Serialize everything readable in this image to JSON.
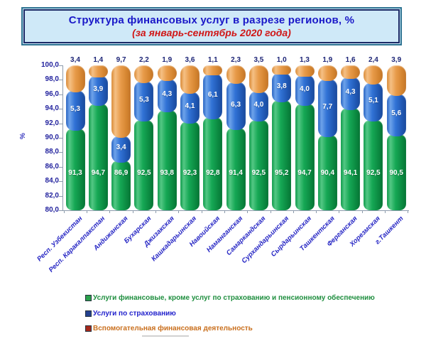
{
  "title_box": {
    "title": "Структура финансовых услуг в разрезе регионов, %",
    "subtitle": "(за январь-сентябрь 2020 года)"
  },
  "chart_data": {
    "type": "bar",
    "stacked": true,
    "grid": false,
    "ylabel": "%",
    "ylim": [
      80.0,
      100.0
    ],
    "y_tick_step": 2.0,
    "y_tick_labels": [
      "80,0",
      "82,0",
      "84,0",
      "86,0",
      "88,0",
      "90,0",
      "92,0",
      "94,0",
      "96,0",
      "98,0",
      "100,0"
    ],
    "decimal_separator": ",",
    "legend_position": "bottom-left",
    "categories": [
      "Респ. Узбекистан",
      "Респ. Каракалпакстан",
      "Андижанская",
      "Бухарская",
      "Джизакская",
      "Кашкадарьинская",
      "Навоийская",
      "Наманганская",
      "Самаркандская",
      "Сурхандарьинская",
      "Сырдарьинская",
      "Ташкентская",
      "Ферганская",
      "Хорезмская",
      "г.Ташкент"
    ],
    "series": [
      {
        "name": "Услуги финансовые, кроме услуг по страхованию и пенсионному обеспечению",
        "color": "#12A04C",
        "values": [
          91.3,
          94.7,
          86.9,
          92.5,
          93.8,
          92.3,
          92.8,
          91.4,
          92.5,
          95.2,
          94.7,
          90.4,
          94.1,
          92.5,
          90.5
        ]
      },
      {
        "name": "Услуги по страхованию",
        "color": "#2B6FD4",
        "values": [
          5.3,
          3.9,
          3.4,
          5.3,
          4.3,
          4.1,
          6.1,
          6.3,
          4.0,
          3.8,
          4.0,
          7.7,
          4.3,
          5.1,
          5.6
        ]
      },
      {
        "name": "Вспомогательная финансовая деятельность",
        "color": "#E3953F",
        "values": [
          3.4,
          1.4,
          9.7,
          2.2,
          1.9,
          3.6,
          1.1,
          2.3,
          3.5,
          1.0,
          1.3,
          1.9,
          1.6,
          2.4,
          3.9
        ]
      }
    ]
  },
  "legend": {
    "items": [
      {
        "label": "Услуги финансовые, кроме услуг по страхованию и пенсионному обеспечению",
        "text_color": "#1e8e3e",
        "marker_color": "#2aa04a"
      },
      {
        "label": "Услуги по страхованию",
        "text_color": "#2222cc",
        "marker_color": "#24418f"
      },
      {
        "label": "Вспомогательная финансовая деятельность",
        "text_color": "#c96f1d",
        "marker_color": "#a5281b"
      }
    ]
  }
}
